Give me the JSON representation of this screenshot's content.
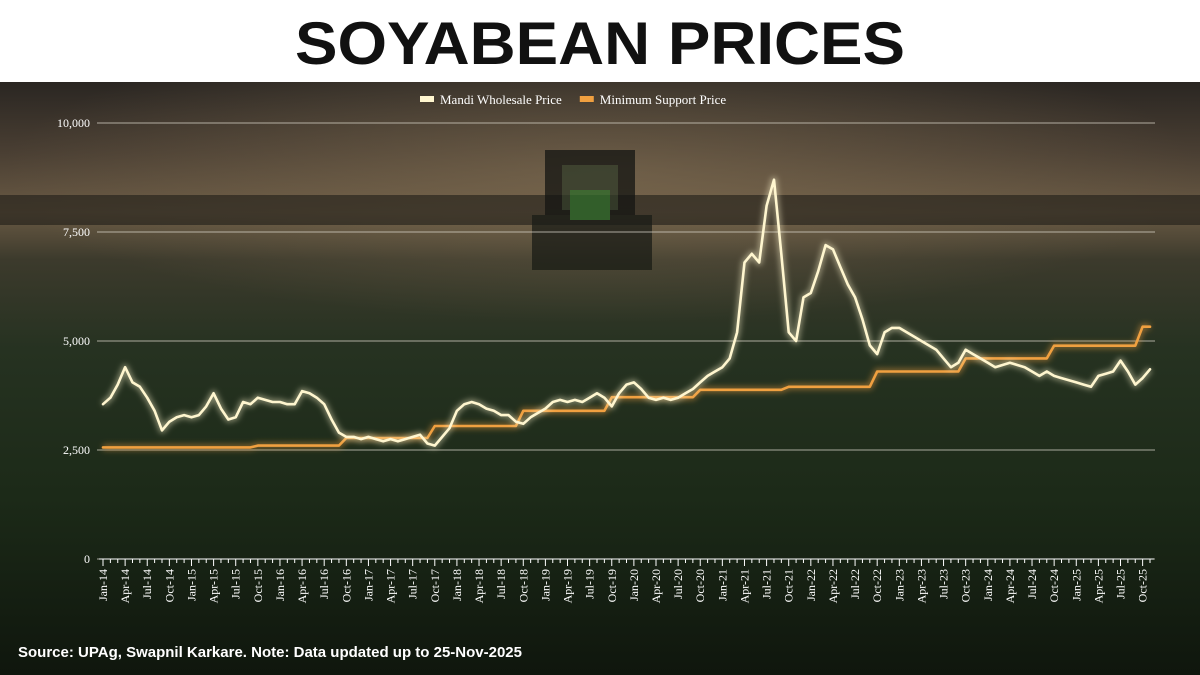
{
  "chart_data": {
    "type": "line",
    "title": "SOYABEAN PRICES",
    "source": "Source: UPAg, Swapnil Karkare. Note: Data updated up to 25-Nov-2025",
    "legend": "top",
    "grid": true,
    "categories": [
      "Jan-14",
      null,
      null,
      "Apr-14",
      null,
      null,
      "Jul-14",
      null,
      null,
      "Oct-14",
      null,
      null,
      "Jan-15",
      null,
      null,
      "Apr-15",
      null,
      null,
      "Jul-15",
      null,
      null,
      "Oct-15",
      null,
      null,
      "Jan-16",
      null,
      null,
      "Apr-16",
      null,
      null,
      "Jul-16",
      null,
      null,
      "Oct-16",
      null,
      null,
      "Jan-17",
      null,
      null,
      "Apr-17",
      null,
      null,
      "Jul-17",
      null,
      null,
      "Oct-17",
      null,
      null,
      "Jan-18",
      null,
      null,
      "Apr-18",
      null,
      null,
      "Jul-18",
      null,
      null,
      "Oct-18",
      null,
      null,
      "Jan-19",
      null,
      null,
      "Apr-19",
      null,
      null,
      "Jul-19",
      null,
      null,
      "Oct-19",
      null,
      null,
      "Jan-20",
      null,
      null,
      "Apr-20",
      null,
      null,
      "Jul-20",
      null,
      null,
      "Oct-20",
      null,
      null,
      "Jan-21",
      null,
      null,
      "Apr-21",
      null,
      null,
      "Jul-21",
      null,
      null,
      "Oct-21",
      null,
      null,
      "Jan-22",
      null,
      null,
      "Apr-22",
      null,
      null,
      "Jul-22",
      null,
      null,
      "Oct-22",
      null,
      null,
      "Jan-23",
      null,
      null,
      "Apr-23",
      null,
      null,
      "Jul-23",
      null,
      null,
      "Oct-23",
      null,
      null,
      "Jan-24",
      null,
      null,
      "Apr-24",
      null,
      null,
      "Jul-24",
      null,
      null,
      "Oct-24",
      null,
      null,
      "Jan-25",
      null,
      null,
      "Apr-25",
      null,
      null,
      "Jul-25",
      null,
      null,
      "Oct-25",
      null
    ],
    "series": [
      {
        "name": "Mandi Wholesale Price",
        "color": "#fff6cf",
        "values": [
          3550,
          3700,
          4000,
          4400,
          4050,
          3950,
          3700,
          3400,
          2950,
          3150,
          3250,
          3300,
          3250,
          3300,
          3500,
          3800,
          3450,
          3200,
          3250,
          3600,
          3550,
          3700,
          3650,
          3600,
          3600,
          3550,
          3550,
          3850,
          3800,
          3700,
          3550,
          3200,
          2900,
          2800,
          2800,
          2750,
          2800,
          2750,
          2700,
          2750,
          2700,
          2750,
          2800,
          2850,
          2650,
          2600,
          2800,
          3000,
          3400,
          3550,
          3600,
          3550,
          3450,
          3400,
          3300,
          3300,
          3150,
          3100,
          3250,
          3350,
          3450,
          3600,
          3650,
          3600,
          3650,
          3600,
          3700,
          3800,
          3700,
          3500,
          3800,
          4000,
          4050,
          3900,
          3700,
          3650,
          3700,
          3650,
          3700,
          3800,
          3900,
          4050,
          4200,
          4300,
          4400,
          4600,
          5200,
          6800,
          7000,
          6800,
          8100,
          8700,
          7000,
          5200,
          5000,
          6000,
          6100,
          6600,
          7200,
          7100,
          6700,
          6300,
          6000,
          5500,
          4900,
          4700,
          5200,
          5300,
          5300,
          5200,
          5100,
          5000,
          4900,
          4800,
          4600,
          4400,
          4500,
          4800,
          4700,
          4600,
          4500,
          4400,
          4450,
          4500,
          4450,
          4400,
          4300,
          4200,
          4300,
          4200,
          4150,
          4100,
          4050,
          4000,
          3950,
          4200,
          4250,
          4300,
          4550,
          4300,
          4000,
          4150,
          4350
        ]
      },
      {
        "name": "Minimum Support Price",
        "color": "#f0a040",
        "values": [
          2560,
          2560,
          2560,
          2560,
          2560,
          2560,
          2560,
          2560,
          2560,
          2560,
          2560,
          2560,
          2560,
          2560,
          2560,
          2560,
          2560,
          2560,
          2560,
          2560,
          2560,
          2600,
          2600,
          2600,
          2600,
          2600,
          2600,
          2600,
          2600,
          2600,
          2600,
          2600,
          2600,
          2775,
          2775,
          2775,
          2775,
          2775,
          2775,
          2775,
          2775,
          2775,
          2775,
          2775,
          2775,
          3050,
          3050,
          3050,
          3050,
          3050,
          3050,
          3050,
          3050,
          3050,
          3050,
          3050,
          3050,
          3399,
          3399,
          3399,
          3399,
          3399,
          3399,
          3399,
          3399,
          3399,
          3399,
          3399,
          3399,
          3710,
          3710,
          3710,
          3710,
          3710,
          3710,
          3710,
          3710,
          3710,
          3710,
          3710,
          3710,
          3880,
          3880,
          3880,
          3880,
          3880,
          3880,
          3880,
          3880,
          3880,
          3880,
          3880,
          3880,
          3950,
          3950,
          3950,
          3950,
          3950,
          3950,
          3950,
          3950,
          3950,
          3950,
          3950,
          3950,
          4300,
          4300,
          4300,
          4300,
          4300,
          4300,
          4300,
          4300,
          4300,
          4300,
          4300,
          4300,
          4600,
          4600,
          4600,
          4600,
          4600,
          4600,
          4600,
          4600,
          4600,
          4600,
          4600,
          4600,
          4892,
          4892,
          4892,
          4892,
          4892,
          4892,
          4892,
          4892,
          4892,
          4892,
          4892,
          4892,
          5328,
          5328
        ]
      }
    ],
    "ylim": [
      0,
      10000
    ],
    "yticks": [
      0,
      {
        "value": 2500,
        "label": "2,500"
      },
      {
        "value": 5000,
        "label": "5,000"
      },
      {
        "value": 7500,
        "label": "7,500"
      },
      {
        "value": 10000,
        "label": "10,000"
      }
    ]
  }
}
